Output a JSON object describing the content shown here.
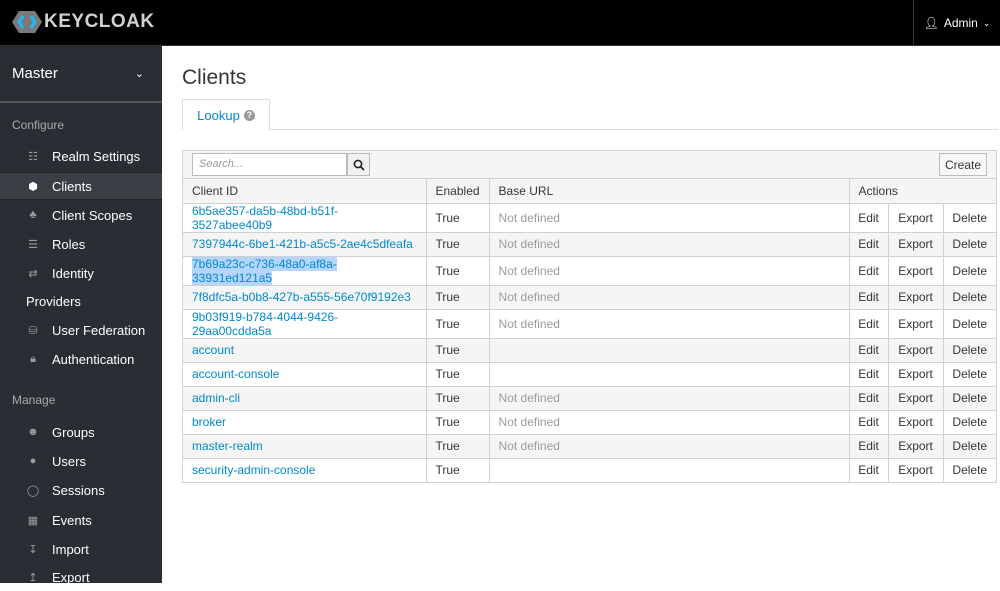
{
  "header": {
    "logo": "KEYCLOAK",
    "user": "Admin"
  },
  "sidebar": {
    "realm": "Master",
    "configure_label": "Configure",
    "configure_items": [
      {
        "label": "Realm Settings",
        "icon": "sliders-icon"
      },
      {
        "label": "Clients",
        "icon": "cube-icon",
        "active": true
      },
      {
        "label": "Client Scopes",
        "icon": "cubes-icon"
      },
      {
        "label": "Roles",
        "icon": "list-icon"
      },
      {
        "label": "Identity",
        "icon": "exchange-icon"
      },
      {
        "label": "Providers",
        "icon": ""
      },
      {
        "label": "User Federation",
        "icon": "database-icon"
      },
      {
        "label": "Authentication",
        "icon": "lock-icon"
      }
    ],
    "manage_label": "Manage",
    "manage_items": [
      {
        "label": "Groups",
        "icon": "users-icon"
      },
      {
        "label": "Users",
        "icon": "user-icon"
      },
      {
        "label": "Sessions",
        "icon": "clock-icon"
      },
      {
        "label": "Events",
        "icon": "calendar-icon"
      },
      {
        "label": "Import",
        "icon": "import-icon"
      },
      {
        "label": "Export",
        "icon": "export-icon"
      }
    ]
  },
  "main": {
    "title": "Clients",
    "tab": "Lookup",
    "search_placeholder": "Search...",
    "create": "Create",
    "columns": [
      "Client ID",
      "Enabled",
      "Base URL",
      "Actions"
    ],
    "actions": [
      "Edit",
      "Export",
      "Delete"
    ],
    "rows": [
      {
        "id": "6b5ae357-da5b-48bd-b51f-3527abee40b9",
        "enabled": "True",
        "base": "Not defined"
      },
      {
        "id": "7397944c-6be1-421b-a5c5-2ae4c5dfeafa",
        "enabled": "True",
        "base": "Not defined"
      },
      {
        "id": "7b69a23c-c736-48a0-af8a-33931ed121a5",
        "enabled": "True",
        "base": "Not defined",
        "selected": true
      },
      {
        "id": "7f8dfc5a-b0b8-427b-a555-56e70f9192e3",
        "enabled": "True",
        "base": "Not defined"
      },
      {
        "id": "9b03f919-b784-4044-9426-29aa00cdda5a",
        "enabled": "True",
        "base": "Not defined"
      },
      {
        "id": "account",
        "enabled": "True",
        "base": ""
      },
      {
        "id": "account-console",
        "enabled": "True",
        "base": ""
      },
      {
        "id": "admin-cli",
        "enabled": "True",
        "base": "Not defined"
      },
      {
        "id": "broker",
        "enabled": "True",
        "base": "Not defined"
      },
      {
        "id": "master-realm",
        "enabled": "True",
        "base": "Not defined"
      },
      {
        "id": "security-admin-console",
        "enabled": "True",
        "base": ""
      }
    ]
  }
}
